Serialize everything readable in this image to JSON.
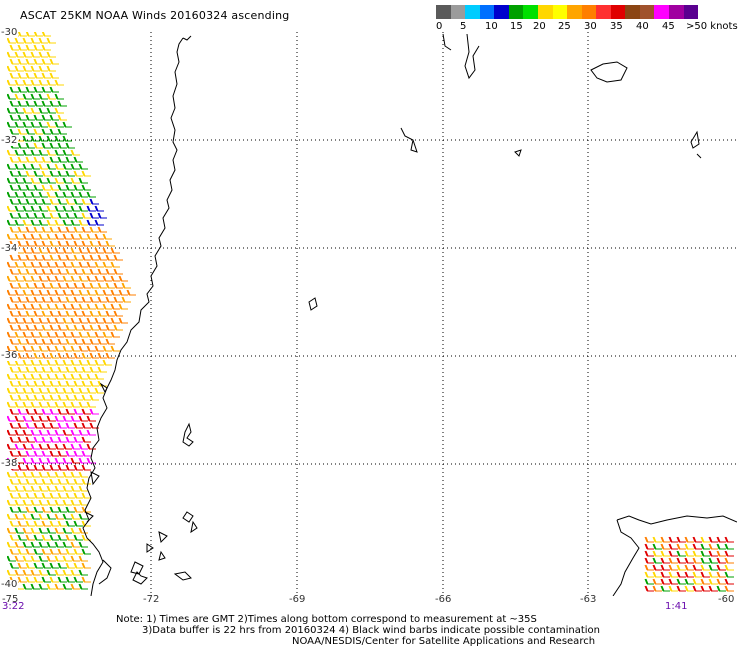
{
  "title": "ASCAT 25KM NOAA Winds 20160324 ascending",
  "scale": {
    "colors": [
      "#5a5a5a",
      "#9b9b9b",
      "#00ccff",
      "#0070ff",
      "#0000cd",
      "#00a000",
      "#00e000",
      "#ffd700",
      "#ffff00",
      "#ffa500",
      "#ff7f00",
      "#ff3030",
      "#e00000",
      "#8b4513",
      "#a0522d",
      "#ff00ff",
      "#a000a0",
      "#5a0090"
    ],
    "labels": [
      "0",
      "5",
      "10",
      "15",
      "20",
      "25",
      "30",
      "35",
      "40",
      "45",
      ">50 knots"
    ]
  },
  "axes": {
    "lat_labels": [
      "-30",
      "-32",
      "-34",
      "-36",
      "-38",
      "-40"
    ],
    "lon_labels": [
      "-75",
      "-72",
      "-69",
      "-66",
      "-63",
      "-60"
    ]
  },
  "pass_times": {
    "left": "3:22",
    "right": "1:41"
  },
  "notes": [
    "Note: 1) Times are GMT 2)Times along bottom correspond to measurement at ~35S",
    "3)Data buffer is 22 hrs from 20160324 4) Black wind barbs indicate possible contamination",
    "NOAA/NESDIS/Center for Satellite Applications and Research"
  ]
}
